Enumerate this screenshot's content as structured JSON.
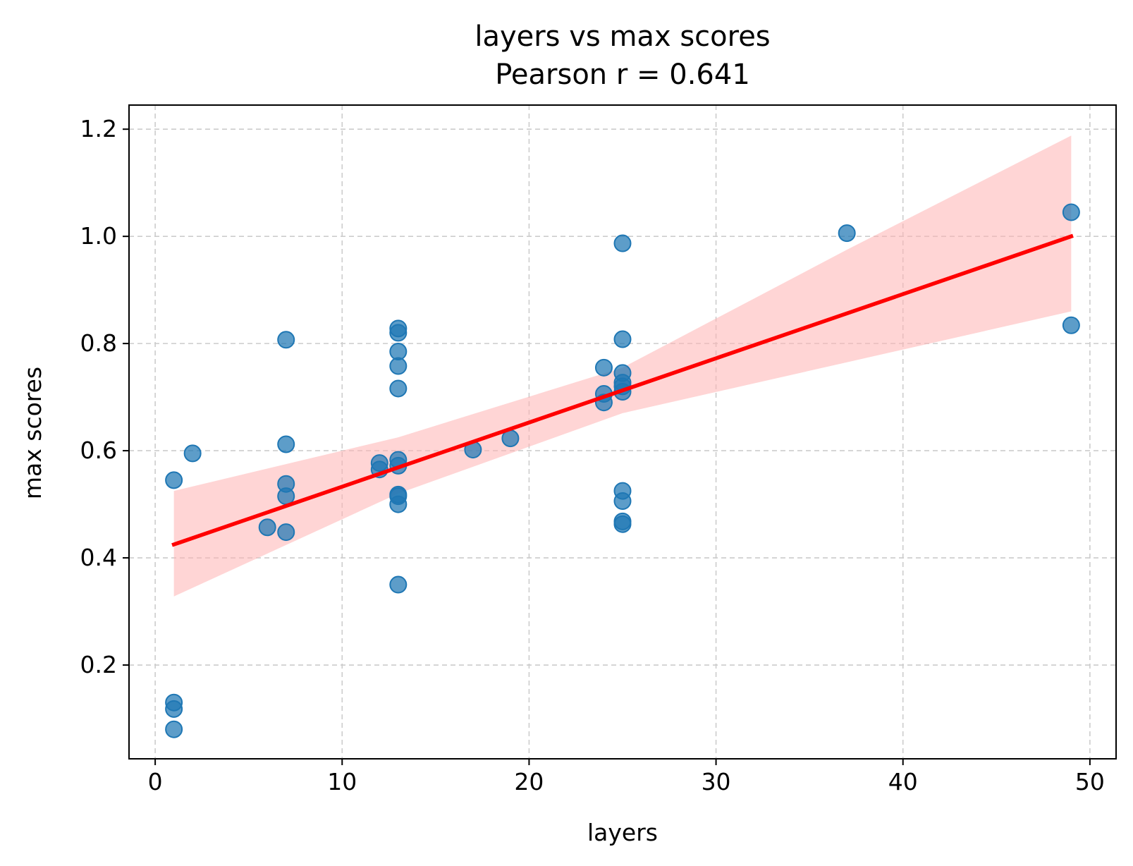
{
  "chart_data": {
    "type": "scatter",
    "title": "layers vs max scores",
    "subtitle": "Pearson r = 0.641",
    "xlabel": "layers",
    "ylabel": "max scores",
    "xlim": [
      -1.4,
      51.4
    ],
    "ylim": [
      0.025,
      1.245
    ],
    "xticks": [
      0,
      10,
      20,
      30,
      40,
      50
    ],
    "xtick_labels": [
      "0",
      "10",
      "20",
      "30",
      "40",
      "50"
    ],
    "yticks": [
      0.2,
      0.4,
      0.6,
      0.8,
      1.0,
      1.2
    ],
    "ytick_labels": [
      "0.2",
      "0.4",
      "0.6",
      "0.8",
      "1.0",
      "1.2"
    ],
    "grid": true,
    "points": [
      {
        "x": 1,
        "y": 0.545
      },
      {
        "x": 1,
        "y": 0.13
      },
      {
        "x": 1,
        "y": 0.118
      },
      {
        "x": 1,
        "y": 0.08
      },
      {
        "x": 2,
        "y": 0.595
      },
      {
        "x": 6,
        "y": 0.457
      },
      {
        "x": 7,
        "y": 0.807
      },
      {
        "x": 7,
        "y": 0.612
      },
      {
        "x": 7,
        "y": 0.538
      },
      {
        "x": 7,
        "y": 0.515
      },
      {
        "x": 7,
        "y": 0.448
      },
      {
        "x": 12,
        "y": 0.577
      },
      {
        "x": 12,
        "y": 0.565
      },
      {
        "x": 13,
        "y": 0.828
      },
      {
        "x": 13,
        "y": 0.82
      },
      {
        "x": 13,
        "y": 0.785
      },
      {
        "x": 13,
        "y": 0.758
      },
      {
        "x": 13,
        "y": 0.716
      },
      {
        "x": 13,
        "y": 0.583
      },
      {
        "x": 13,
        "y": 0.572
      },
      {
        "x": 13,
        "y": 0.518
      },
      {
        "x": 13,
        "y": 0.515
      },
      {
        "x": 13,
        "y": 0.5
      },
      {
        "x": 13,
        "y": 0.35
      },
      {
        "x": 17,
        "y": 0.602
      },
      {
        "x": 19,
        "y": 0.623
      },
      {
        "x": 24,
        "y": 0.755
      },
      {
        "x": 24,
        "y": 0.706
      },
      {
        "x": 24,
        "y": 0.69
      },
      {
        "x": 25,
        "y": 0.987
      },
      {
        "x": 25,
        "y": 0.808
      },
      {
        "x": 25,
        "y": 0.745
      },
      {
        "x": 25,
        "y": 0.727
      },
      {
        "x": 25,
        "y": 0.72
      },
      {
        "x": 25,
        "y": 0.71
      },
      {
        "x": 25,
        "y": 0.525
      },
      {
        "x": 25,
        "y": 0.506
      },
      {
        "x": 25,
        "y": 0.468
      },
      {
        "x": 25,
        "y": 0.463
      },
      {
        "x": 37,
        "y": 1.006
      },
      {
        "x": 49,
        "y": 1.045
      },
      {
        "x": 49,
        "y": 0.834
      }
    ],
    "point_color": "#1f77b4",
    "regression": {
      "color": "#ff0000",
      "line": {
        "x": [
          1,
          49
        ],
        "y": [
          0.425,
          1.0
        ]
      },
      "ci_band": {
        "color": "#ffb3b3",
        "x": [
          1,
          13,
          25,
          37,
          49
        ],
        "upper": [
          0.525,
          0.625,
          0.755,
          0.975,
          1.188
        ],
        "lower": [
          0.328,
          0.52,
          0.67,
          0.765,
          0.86
        ]
      }
    }
  }
}
